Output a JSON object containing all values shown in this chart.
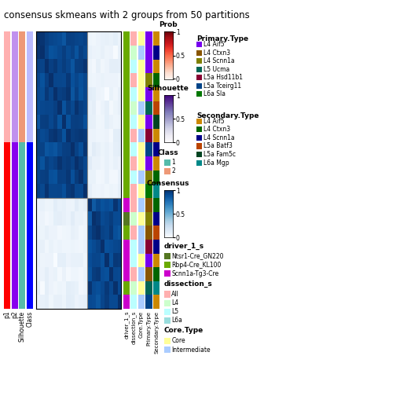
{
  "title": "consensus skmeans with 2 groups from 50 partitions",
  "title_fontsize": 8.5,
  "n_class1": 12,
  "n_class2": 8,
  "p1_color_class1": "#FF0000",
  "p1_color_class2": "#FFB0B0",
  "p2_color_class1": "#8800EE",
  "p2_color_class2": "#C090EE",
  "silhouette_color_class1": "#55BBAA",
  "silhouette_color_class2": "#EE9977",
  "class_color_class1": "#0000FF",
  "class_color_class2": "#BBBBFF",
  "driver_1_s": [
    "#6AAA00",
    "#6AAA00",
    "#6AAA00",
    "#6AAA00",
    "#6AAA00",
    "#6AAA00",
    "#6AAA00",
    "#6AAA00",
    "#6AAA00",
    "#6AAA00",
    "#6AAA00",
    "#6AAA00",
    "#CC00CC",
    "#557722",
    "#6AAA00",
    "#CC00CC",
    "#CC00CC",
    "#CC00CC",
    "#6AAA00",
    "#CC00CC"
  ],
  "dissection_s": [
    "#FFB0B0",
    "#CCFFCC",
    "#BBFFFF",
    "#FFB0B0",
    "#BBFFFF",
    "#CCFFCC",
    "#BBFFFF",
    "#FFB0B0",
    "#BBFFFF",
    "#FFB0B0",
    "#BBFFFF",
    "#FFB0B0",
    "#FFB0B0",
    "#CCFFCC",
    "#FFB0B0",
    "#BBFFFF",
    "#BBFFFF",
    "#FFB0B0",
    "#CCFFCC",
    "#BBFFFF"
  ],
  "core_type": [
    "#FFFF99",
    "#AACCFF",
    "#FFFF99",
    "#FFFF99",
    "#FFFF99",
    "#AACCFF",
    "#FFFF99",
    "#AACCFF",
    "#FFFF99",
    "#FFFF99",
    "#AACCFF",
    "#FFFF99",
    "#AACCFF",
    "#FFFF99",
    "#AACCFF",
    "#AACCFF",
    "#FFFF99",
    "#AACCFF",
    "#FFFF99",
    "#AACCFF"
  ],
  "primary_type": [
    "#7700EE",
    "#7700EE",
    "#7700EE",
    "#808000",
    "#7700EE",
    "#006655",
    "#7700EE",
    "#880033",
    "#004488",
    "#7700EE",
    "#808000",
    "#007700",
    "#885500",
    "#808000",
    "#885500",
    "#880033",
    "#7700EE",
    "#885500",
    "#006655",
    "#004488"
  ],
  "secondary_type": [
    "#CC8800",
    "#000088",
    "#CC8800",
    "#006600",
    "#CC8800",
    "#BB4400",
    "#004422",
    "#CC8800",
    "#000088",
    "#CC8800",
    "#006600",
    "#008888",
    "#006600",
    "#000088",
    "#BB4400",
    "#000088",
    "#CC8800",
    "#006600",
    "#008888",
    "#CC8800"
  ],
  "primary_bg": [
    "#AAAAAA",
    "#AAAAAA",
    "#AAAAAA",
    "#AAAAAA",
    "#AAAAAA",
    "#AAAAAA",
    "#AAAAAA",
    "#AAAAAA",
    "#AAAAAA",
    "#AAAAAA",
    "#AAAAAA",
    "#AAAAAA",
    "#AAAAAA",
    "#AAAAAA",
    "#AAAAAA",
    "#AAAAAA",
    "#AAAAAA",
    "#AAAAAA",
    "#AAAAAA",
    "#AAAAAA"
  ],
  "legend_pt": [
    [
      "L4 Aif5",
      "#7700EE"
    ],
    [
      "L4 Ctxn3",
      "#885500"
    ],
    [
      "L4 Scnn1a",
      "#808000"
    ],
    [
      "L5 Ucma",
      "#006655"
    ],
    [
      "L5a Hsd11b1",
      "#880033"
    ],
    [
      "L5a Tceirg11",
      "#004488"
    ],
    [
      "L6a Sla",
      "#007700"
    ]
  ],
  "legend_st": [
    [
      "L4 Aif5",
      "#CC8800"
    ],
    [
      "L4 Ctxn3",
      "#006600"
    ],
    [
      "L4 Scnn1a",
      "#000088"
    ],
    [
      "L5a Batf3",
      "#BB4400"
    ],
    [
      "L5a Fam5c",
      "#004422"
    ],
    [
      "L6a Mgp",
      "#008888"
    ]
  ],
  "legend_driver": [
    [
      "Ntsr1-Cre_GN220",
      "#557722"
    ],
    [
      "Rbp4-Cre_KL100",
      "#6AAA00"
    ],
    [
      "Scnn1a-Tg3-Cre",
      "#CC00CC"
    ]
  ],
  "legend_dissection": [
    [
      "All",
      "#FFB0B0"
    ],
    [
      "L4",
      "#CCFFCC"
    ],
    [
      "L5",
      "#BBFFFF"
    ],
    [
      "L6a",
      "#99DDDD"
    ]
  ],
  "legend_coretype": [
    [
      "Core",
      "#FFFF99"
    ],
    [
      "Intermediate",
      "#AACCFF"
    ]
  ]
}
